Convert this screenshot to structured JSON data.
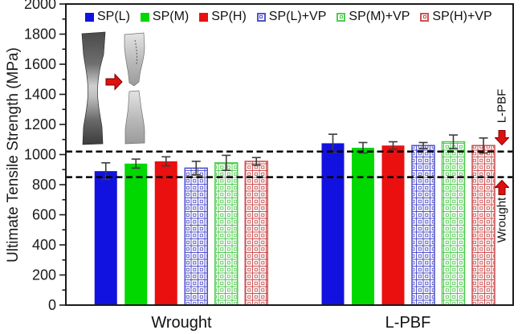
{
  "chart_data": {
    "type": "bar",
    "title": "",
    "ylabel": "Ultimate Tensile Strength (MPa)",
    "ylim": [
      0,
      2000
    ],
    "yticks": [
      0,
      200,
      400,
      600,
      800,
      1000,
      1200,
      1400,
      1600,
      1800,
      2000
    ],
    "minor_tick_step": 100,
    "grid": false,
    "legend_position": "top-inside",
    "categories": [
      "Wrought",
      "L-PBF"
    ],
    "series": [
      {
        "name": "SP(L)",
        "style": "solid",
        "color": "#1212e0",
        "values": [
          890,
          1075
        ],
        "errors": [
          55,
          60
        ]
      },
      {
        "name": "SP(M)",
        "style": "solid",
        "color": "#00d800",
        "values": [
          940,
          1045
        ],
        "errors": [
          30,
          35
        ]
      },
      {
        "name": "SP(H)",
        "style": "solid",
        "color": "#ea1010",
        "values": [
          955,
          1060
        ],
        "errors": [
          30,
          25
        ]
      },
      {
        "name": "SP(L)+VP",
        "style": "hatched",
        "color": "#5252cc",
        "values": [
          910,
          1060
        ],
        "errors": [
          45,
          20
        ]
      },
      {
        "name": "SP(M)+VP",
        "style": "hatched",
        "color": "#52cc52",
        "values": [
          945,
          1085
        ],
        "errors": [
          50,
          45
        ]
      },
      {
        "name": "SP(H)+VP",
        "style": "hatched",
        "color": "#cc5252",
        "values": [
          955,
          1060
        ],
        "errors": [
          25,
          50
        ]
      }
    ],
    "reference_lines": [
      {
        "value": 1020,
        "label": "L-PBF",
        "arrow": "down"
      },
      {
        "value": 850,
        "label": "Wrought",
        "arrow": "up"
      }
    ],
    "colors": {
      "error_bar": "#3c3c3c",
      "reference_line": "#000000",
      "annotation_arrow": "#dd1111",
      "axis": "#1a1a1a"
    }
  },
  "icons": {
    "inset_intact_specimen": "tensile-dogbone-specimen",
    "inset_fractured_specimen": "fractured-dogbone-specimen",
    "inset_arrow": "red-right-arrow"
  }
}
